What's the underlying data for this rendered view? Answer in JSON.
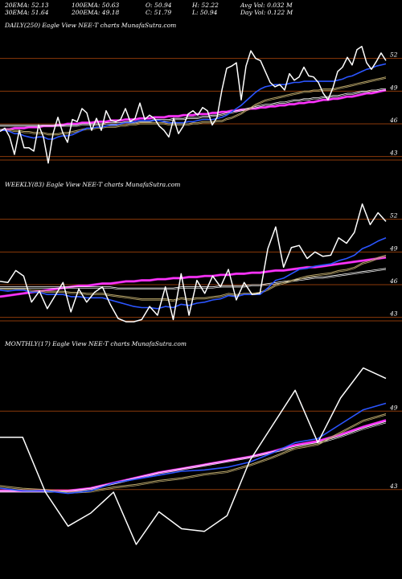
{
  "header": {
    "row1": [
      "20EMA: 52.13",
      "100EMA: 50.63",
      "O: 50.94",
      "H: 52.22",
      "Avg Vol: 0.032  M"
    ],
    "row2": [
      "30EMA: 51.64",
      "200EMA: 49.18",
      "C: 51.79",
      "L: 50.94",
      "Day Vol: 0.122  M"
    ]
  },
  "colors": {
    "background": "#000000",
    "price": "#ffffff",
    "ema_fast": "#2b55ff",
    "ema_slow": "#ff33ff",
    "gridline": "#8b3a0a",
    "ema_mid": "#b9a66a"
  },
  "chart_data": [
    {
      "type": "line",
      "title": "DAILY(250) Eagle  View  NEE-T charts MunafaSutra.com",
      "ylim": [
        41.5,
        55
      ],
      "yticks": [
        52,
        49,
        46,
        43
      ],
      "x": [
        0,
        1,
        2,
        3,
        4,
        5,
        6,
        7,
        8,
        9,
        10,
        11,
        12,
        13,
        14,
        15,
        16,
        17,
        18,
        19,
        20,
        21,
        22,
        23,
        24,
        25,
        26,
        27,
        28,
        29,
        30,
        31,
        32,
        33,
        34,
        35,
        36,
        37,
        38,
        39,
        40,
        41,
        42,
        43,
        44,
        45,
        46,
        47,
        48,
        49,
        50,
        51,
        52,
        53,
        54,
        55,
        56,
        57,
        58,
        59,
        60,
        61,
        62,
        63,
        64,
        65,
        66,
        67,
        68,
        69,
        70,
        71,
        72,
        73,
        74,
        75,
        76,
        77,
        78,
        79,
        80
      ],
      "series": [
        {
          "values": [
            45.3,
            45.6,
            44.8,
            43.2,
            45.4,
            43.8,
            43.8,
            43.5,
            45.9,
            44.8,
            42.4,
            45.1,
            46.6,
            45.2,
            44.3,
            46.4,
            46.2,
            47.4,
            47.0,
            45.4,
            46.5,
            45.4,
            47.2,
            46.3,
            46.2,
            46.4,
            47.4,
            46.2,
            46.5,
            47.9,
            46.4,
            46.8,
            46.5,
            45.8,
            45.4,
            44.8,
            46.5,
            45.1,
            45.8,
            46.9,
            47.2,
            46.8,
            47.5,
            47.2,
            45.9,
            46.6,
            49.1,
            51.1,
            51.3,
            51.6,
            48.2,
            51.3,
            52.7,
            52.0,
            51.8,
            50.8,
            49.8,
            49.4,
            49.6,
            49.1,
            50.6,
            50.0,
            50.3,
            51.2,
            50.4,
            50.3,
            49.8,
            48.8,
            48.2,
            49.3,
            50.8,
            51.2,
            52.1,
            51.4,
            52.8,
            53.1,
            51.6,
            51.0,
            51.7,
            52.5,
            51.8
          ]
        },
        {
          "values": [
            45.4,
            45.4,
            45.3,
            45.1,
            45.1,
            44.9,
            44.8,
            44.7,
            44.8,
            44.8,
            44.6,
            44.6,
            44.8,
            44.9,
            44.9,
            45.0,
            45.2,
            45.4,
            45.6,
            45.6,
            45.7,
            45.7,
            45.8,
            45.9,
            45.9,
            46.0,
            46.1,
            46.1,
            46.2,
            46.3,
            46.3,
            46.3,
            46.3,
            46.3,
            46.2,
            46.1,
            46.1,
            46.1,
            46.1,
            46.2,
            46.2,
            46.3,
            46.4,
            46.4,
            46.4,
            46.5,
            46.6,
            46.8,
            47.1,
            47.4,
            47.7,
            48.1,
            48.5,
            48.9,
            49.2,
            49.4,
            49.5,
            49.6,
            49.6,
            49.6,
            49.7,
            49.8,
            49.8,
            49.9,
            49.9,
            49.9,
            49.9,
            49.9,
            49.9,
            49.9,
            50.0,
            50.1,
            50.3,
            50.4,
            50.6,
            50.8,
            51.0,
            51.1,
            51.3,
            51.4,
            51.5
          ]
        },
        {
          "values": [
            45.5,
            45.5,
            45.5,
            45.4,
            45.4,
            45.3,
            45.3,
            45.2,
            45.2,
            45.2,
            45.1,
            45.1,
            45.1,
            45.2,
            45.2,
            45.3,
            45.4,
            45.5,
            45.6,
            45.6,
            45.7,
            45.7,
            45.8,
            45.8,
            45.8,
            45.9,
            45.9,
            46.0,
            46.0,
            46.1,
            46.1,
            46.1,
            46.1,
            46.1,
            46.1,
            46.0,
            46.0,
            46.0,
            46.0,
            46.0,
            46.1,
            46.1,
            46.2,
            46.2,
            46.2,
            46.3,
            46.3,
            46.5,
            46.6,
            46.8,
            47.0,
            47.3,
            47.5,
            47.8,
            48.0,
            48.2,
            48.3,
            48.4,
            48.5,
            48.6,
            48.7,
            48.8,
            48.9,
            49.0,
            49.0,
            49.1,
            49.1,
            49.2,
            49.2,
            49.2,
            49.3,
            49.4,
            49.5,
            49.6,
            49.7,
            49.8,
            49.9,
            50.0,
            50.1,
            50.2,
            50.3
          ]
        },
        {
          "values": [
            45.9,
            45.9,
            45.9,
            45.9,
            45.9,
            45.9,
            45.9,
            45.9,
            45.9,
            45.9,
            45.9,
            45.9,
            45.9,
            45.9,
            45.9,
            45.9,
            45.9,
            46.0,
            46.0,
            46.0,
            46.0,
            46.0,
            46.1,
            46.1,
            46.1,
            46.1,
            46.2,
            46.2,
            46.2,
            46.3,
            46.3,
            46.3,
            46.4,
            46.4,
            46.4,
            46.4,
            46.5,
            46.5,
            46.5,
            46.6,
            46.6,
            46.6,
            46.7,
            46.7,
            46.8,
            46.8,
            46.9,
            47.0,
            47.1,
            47.2,
            47.3,
            47.4,
            47.5,
            47.6,
            47.7,
            47.8,
            47.8,
            47.9,
            48.0,
            48.0,
            48.1,
            48.2,
            48.2,
            48.3,
            48.3,
            48.4,
            48.4,
            48.5,
            48.5,
            48.6,
            48.6,
            48.7,
            48.8,
            48.8,
            48.9,
            49.0,
            49.0,
            49.1,
            49.1,
            49.2,
            49.2
          ]
        },
        {
          "values": [
            45.4,
            45.5,
            45.5,
            45.6,
            45.6,
            45.6,
            45.7,
            45.7,
            45.7,
            45.8,
            45.8,
            45.8,
            45.9,
            45.9,
            46.0,
            46.0,
            46.0,
            46.1,
            46.1,
            46.1,
            46.2,
            46.2,
            46.2,
            46.3,
            46.3,
            46.3,
            46.4,
            46.4,
            46.4,
            46.5,
            46.5,
            46.5,
            46.6,
            46.6,
            46.6,
            46.7,
            46.7,
            46.7,
            46.8,
            46.8,
            46.8,
            46.9,
            46.9,
            46.9,
            47.0,
            47.0,
            47.1,
            47.1,
            47.2,
            47.2,
            47.3,
            47.3,
            47.4,
            47.4,
            47.5,
            47.5,
            47.6,
            47.6,
            47.7,
            47.7,
            47.8,
            47.8,
            47.9,
            47.9,
            48.0,
            48.0,
            48.1,
            48.2,
            48.2,
            48.3,
            48.3,
            48.4,
            48.5,
            48.5,
            48.6,
            48.7,
            48.8,
            48.8,
            48.9,
            49.0,
            49.1
          ]
        }
      ]
    },
    {
      "type": "line",
      "title": "WEEKLY(83) Eagle  View  NEE-T charts MunafaSutra.com",
      "ylim": [
        41.5,
        55
      ],
      "yticks": [
        52,
        49,
        46,
        43
      ],
      "x": [
        0,
        1,
        2,
        3,
        4,
        5,
        6,
        7,
        8,
        9,
        10,
        11,
        12,
        13,
        14,
        15,
        16,
        17,
        18,
        19,
        20,
        21,
        22,
        23,
        24,
        25,
        26,
        27,
        28,
        29,
        30,
        31,
        32,
        33,
        34,
        35,
        36,
        37,
        38,
        39,
        40,
        41,
        42,
        43,
        44,
        45,
        46,
        47,
        48,
        49
      ],
      "series": [
        {
          "values": [
            46.3,
            46.2,
            47.3,
            46.8,
            44.4,
            45.4,
            43.8,
            45.0,
            46.2,
            43.5,
            45.6,
            44.4,
            45.3,
            45.8,
            44.2,
            42.9,
            42.6,
            42.6,
            42.8,
            44.0,
            43.2,
            45.8,
            42.8,
            47.0,
            43.2,
            46.4,
            45.2,
            46.8,
            45.8,
            47.4,
            44.6,
            46.2,
            45.1,
            45.2,
            49.3,
            51.3,
            47.6,
            49.4,
            49.6,
            48.4,
            49.0,
            48.6,
            48.7,
            50.3,
            49.8,
            50.8,
            53.4,
            51.5,
            52.6,
            51.8
          ]
        },
        {
          "values": [
            45.5,
            45.4,
            45.5,
            45.5,
            45.3,
            45.3,
            45.1,
            45.1,
            45.1,
            44.9,
            44.9,
            44.8,
            44.8,
            44.8,
            44.6,
            44.4,
            44.2,
            44.0,
            43.9,
            43.9,
            43.8,
            44.0,
            43.9,
            44.2,
            44.1,
            44.3,
            44.4,
            44.6,
            44.7,
            45.0,
            44.9,
            45.1,
            45.1,
            45.1,
            45.7,
            46.4,
            46.6,
            47.0,
            47.4,
            47.5,
            47.7,
            47.8,
            47.9,
            48.2,
            48.4,
            48.7,
            49.3,
            49.6,
            50.0,
            50.3
          ]
        },
        {
          "values": [
            45.6,
            45.6,
            45.6,
            45.6,
            45.5,
            45.5,
            45.4,
            45.4,
            45.4,
            45.3,
            45.3,
            45.2,
            45.2,
            45.2,
            45.1,
            45.0,
            44.9,
            44.8,
            44.7,
            44.7,
            44.7,
            44.7,
            44.6,
            44.8,
            44.7,
            44.8,
            44.8,
            44.9,
            45.0,
            45.2,
            45.1,
            45.2,
            45.2,
            45.3,
            45.6,
            46.0,
            46.2,
            46.4,
            46.6,
            46.8,
            46.9,
            47.0,
            47.1,
            47.3,
            47.4,
            47.6,
            48.0,
            48.2,
            48.5,
            48.7
          ]
        },
        {
          "values": [
            45.8,
            45.8,
            45.8,
            45.8,
            45.8,
            45.8,
            45.8,
            45.8,
            45.8,
            45.8,
            45.8,
            45.8,
            45.8,
            45.8,
            45.8,
            45.7,
            45.7,
            45.7,
            45.7,
            45.7,
            45.7,
            45.7,
            45.7,
            45.8,
            45.8,
            45.8,
            45.8,
            45.8,
            45.9,
            45.9,
            45.9,
            45.9,
            46.0,
            46.0,
            46.1,
            46.2,
            46.3,
            46.4,
            46.5,
            46.6,
            46.7,
            46.7,
            46.8,
            46.9,
            47.0,
            47.1,
            47.2,
            47.3,
            47.4,
            47.5
          ]
        },
        {
          "values": [
            44.9,
            45.0,
            45.1,
            45.2,
            45.3,
            45.4,
            45.5,
            45.6,
            45.7,
            45.8,
            45.9,
            45.9,
            46.0,
            46.1,
            46.1,
            46.2,
            46.3,
            46.3,
            46.4,
            46.4,
            46.5,
            46.5,
            46.6,
            46.6,
            46.7,
            46.7,
            46.8,
            46.8,
            46.9,
            46.9,
            47.0,
            47.0,
            47.1,
            47.1,
            47.2,
            47.3,
            47.3,
            47.4,
            47.5,
            47.6,
            47.6,
            47.7,
            47.8,
            47.9,
            48.0,
            48.1,
            48.2,
            48.3,
            48.4,
            48.5
          ]
        }
      ]
    },
    {
      "type": "line",
      "title": "MONTHLY(17) Eagle  View  NEE-T charts MunafaSutra.com",
      "ylim": [
        38,
        54
      ],
      "yticks": [
        49,
        43
      ],
      "x": [
        0,
        1,
        2,
        3,
        4,
        5,
        6,
        7,
        8,
        9,
        10,
        11,
        12,
        13,
        14,
        15,
        16,
        17
      ],
      "series": [
        {
          "values": [
            47.0,
            47.0,
            42.8,
            40.2,
            41.2,
            42.8,
            38.8,
            41.3,
            40.0,
            39.8,
            41.0,
            45.2,
            47.9,
            50.6,
            46.6,
            50.0,
            52.3,
            51.5
          ]
        },
        {
          "values": [
            43.1,
            42.9,
            42.9,
            42.7,
            42.9,
            43.5,
            43.8,
            44.1,
            44.4,
            44.5,
            44.7,
            45.1,
            45.8,
            46.6,
            46.9,
            48.0,
            49.1,
            49.6
          ]
        },
        {
          "values": [
            43.3,
            43.1,
            43.0,
            42.8,
            42.9,
            43.2,
            43.4,
            43.7,
            43.9,
            44.2,
            44.4,
            44.9,
            45.5,
            46.2,
            46.5,
            47.4,
            48.3,
            48.8
          ]
        },
        {
          "values": [
            42.9,
            42.9,
            42.9,
            42.9,
            43.1,
            43.5,
            43.9,
            44.3,
            44.6,
            44.9,
            45.2,
            45.5,
            45.9,
            46.3,
            46.6,
            47.1,
            47.7,
            48.2
          ]
        },
        {
          "values": [
            42.9,
            42.9,
            42.9,
            42.9,
            43.1,
            43.5,
            43.9,
            44.3,
            44.6,
            44.9,
            45.2,
            45.5,
            45.9,
            46.4,
            46.7,
            47.2,
            47.8,
            48.3
          ]
        }
      ]
    }
  ]
}
